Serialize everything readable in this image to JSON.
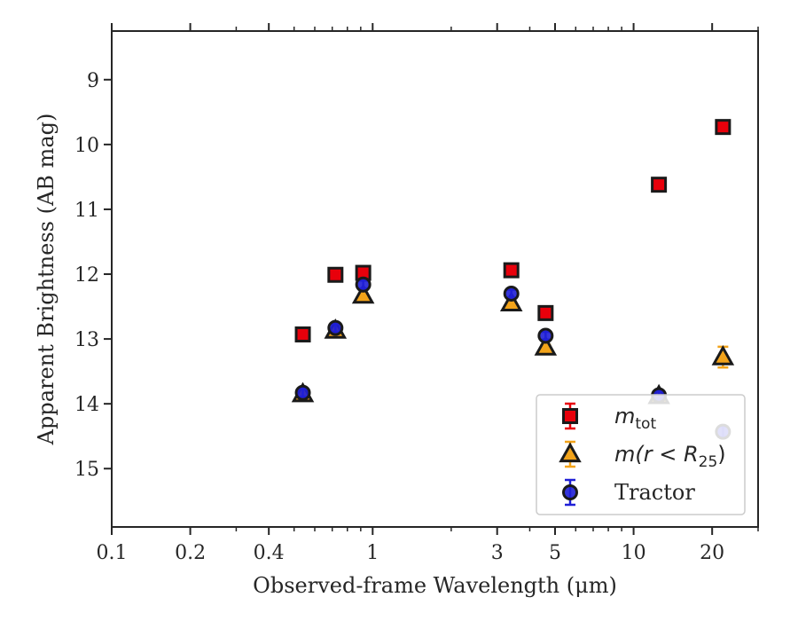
{
  "chart_data": {
    "type": "scatter",
    "xlabel": "Observed-frame Wavelength (μm)",
    "ylabel": "Apparent Brightness (AB mag)",
    "xscale": "log",
    "xlim": [
      0.1,
      30
    ],
    "ylim": [
      15.9,
      8.25
    ],
    "y_inverted": true,
    "x_ticks": [
      {
        "value": 0.1,
        "label": "0.1"
      },
      {
        "value": 0.2,
        "label": "0.2"
      },
      {
        "value": 0.4,
        "label": "0.4"
      },
      {
        "value": 1,
        "label": "1"
      },
      {
        "value": 3,
        "label": "3"
      },
      {
        "value": 5,
        "label": "5"
      },
      {
        "value": 10,
        "label": "10"
      },
      {
        "value": 20,
        "label": "20"
      }
    ],
    "y_ticks": [
      9,
      10,
      11,
      12,
      13,
      14,
      15
    ],
    "grid": false,
    "legend_position": "lower right",
    "series": [
      {
        "name": "m_tot",
        "legend_label": "m",
        "legend_sub": "tot",
        "marker": "square",
        "color": "#e8000b",
        "edge_color": "#1a1a1a",
        "errcolor": "#e8000b",
        "x": [
          0.54,
          0.72,
          0.92,
          3.4,
          4.6,
          12.5,
          22
        ],
        "y": [
          12.93,
          12.01,
          11.98,
          11.94,
          12.6,
          10.62,
          9.73
        ],
        "yerr": [
          0.02,
          0.02,
          0.02,
          0.02,
          0.02,
          0.03,
          0.04
        ]
      },
      {
        "name": "m(r<R25)",
        "legend_label": "m(r < R",
        "legend_sub": "25",
        "legend_tail": ")",
        "marker": "triangle",
        "color": "#f2a31a",
        "edge_color": "#1a1a1a",
        "errcolor": "#f2a31a",
        "x": [
          0.54,
          0.72,
          0.92,
          3.4,
          4.6,
          12.5,
          22
        ],
        "y": [
          13.85,
          12.87,
          12.33,
          12.45,
          13.13,
          13.88,
          13.28
        ],
        "yerr": [
          0.03,
          0.03,
          0.03,
          0.03,
          0.04,
          0.05,
          0.16
        ]
      },
      {
        "name": "Tractor",
        "legend_label": "Tractor",
        "marker": "circle",
        "color": "#1f1fd6",
        "edge_color": "#1a1a1a",
        "errcolor": "#1f1fd6",
        "x": [
          0.54,
          0.72,
          0.92,
          3.4,
          4.6,
          12.5,
          22
        ],
        "y": [
          13.83,
          12.83,
          12.16,
          12.3,
          12.95,
          13.87,
          14.43
        ],
        "yerr": [
          0.06,
          0.06,
          0.06,
          0.06,
          0.06,
          0.06,
          0.08
        ]
      }
    ]
  }
}
